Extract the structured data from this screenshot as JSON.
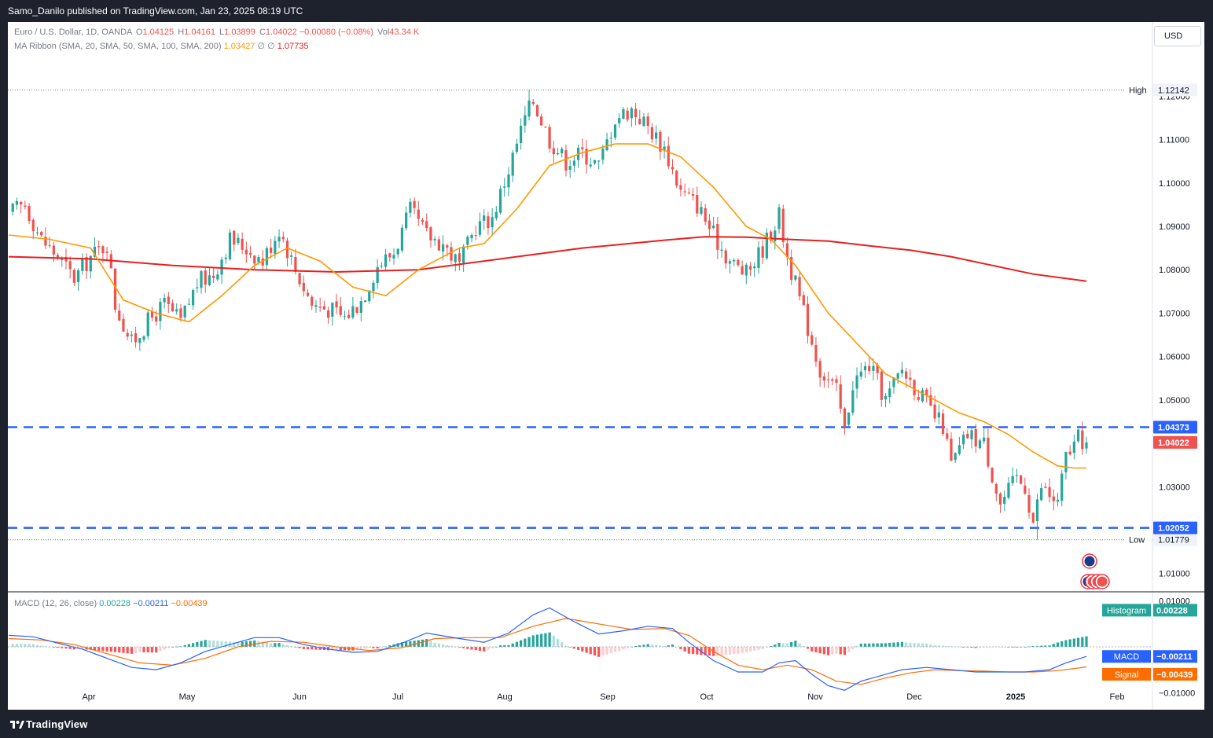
{
  "header": {
    "publisher": "Samo_Danilo published on TradingView.com, Jan 23, 2025 08:19 UTC"
  },
  "legend": {
    "symbol": "Euro / U.S. Dollar, 1D, OANDA",
    "open_label": "O",
    "open": "1.04125",
    "high_label": "H",
    "high": "1.04161",
    "low_label": "L",
    "low": "1.03899",
    "close_label": "C",
    "close": "1.04022",
    "change": "−0.00080 (−0.08%)",
    "vol_label": "Vol",
    "vol": "43.34 K",
    "ma_label": "MA Ribbon (SMA, 20, SMA, 50, SMA, 100, SMA, 200)",
    "ma_value1": "1.03427",
    "ma_value2": "∅",
    "ma_value3": "∅",
    "ma_value4": "1.07735",
    "macd_label": "MACD (12, 26, close)",
    "macd_hist": "0.00228",
    "macd_line": "−0.00211",
    "macd_signal": "−0.00439"
  },
  "currency_button": "USD",
  "price_badges": {
    "high_label": "High",
    "high_value": "1.12142",
    "low_label": "Low",
    "low_value": "1.01779",
    "level_upper": "1.04373",
    "level_lower": "1.02052",
    "last_price": "1.04022",
    "hist_label": "Histogram",
    "hist_value": "0.00228",
    "macd_label": "MACD",
    "macd_value": "−0.00211",
    "signal_label": "Signal",
    "signal_value": "−0.00439"
  },
  "footer": {
    "brand": "TradingView"
  },
  "colors": {
    "up": "#26a69a",
    "down": "#ef5350",
    "sma20": "#ff9800",
    "sma200": "#e91e1e",
    "level": "#2962ff",
    "macd": "#2962ff",
    "signal": "#ff6d00",
    "text": "#131722",
    "muted": "#787b86"
  },
  "chart_data": {
    "type": "candlestick",
    "symbol": "EURUSD",
    "timeframe": "1D",
    "y_axis_ticks": [
      "1.12000",
      "1.11000",
      "1.10000",
      "1.09000",
      "1.08000",
      "1.07000",
      "1.06000",
      "1.05000",
      "1.03000",
      "1.01000"
    ],
    "ylim": [
      1.0085,
      1.1235
    ],
    "x_axis_labels": [
      "Apr",
      "May",
      "Jun",
      "Jul",
      "Aug",
      "Sep",
      "Oct",
      "Nov",
      "Dec",
      "2025",
      "Feb"
    ],
    "price_path": [
      [
        0,
        1.093
      ],
      [
        4,
        1.095
      ],
      [
        8,
        1.087
      ],
      [
        12,
        1.083
      ],
      [
        16,
        1.078
      ],
      [
        20,
        1.083
      ],
      [
        24,
        1.086
      ],
      [
        26,
        1.072
      ],
      [
        30,
        1.063
      ],
      [
        34,
        1.068
      ],
      [
        38,
        1.072
      ],
      [
        42,
        1.068
      ],
      [
        46,
        1.077
      ],
      [
        50,
        1.079
      ],
      [
        54,
        1.087
      ],
      [
        58,
        1.085
      ],
      [
        62,
        1.082
      ],
      [
        66,
        1.0895
      ],
      [
        70,
        1.08
      ],
      [
        74,
        1.072
      ],
      [
        78,
        1.071
      ],
      [
        82,
        1.069
      ],
      [
        86,
        1.073
      ],
      [
        90,
        1.081
      ],
      [
        94,
        1.084
      ],
      [
        98,
        1.0935
      ],
      [
        102,
        1.088
      ],
      [
        106,
        1.086
      ],
      [
        110,
        1.081
      ],
      [
        114,
        1.09
      ],
      [
        118,
        1.092
      ],
      [
        122,
        1.103
      ],
      [
        126,
        1.115
      ],
      [
        128,
        1.119
      ],
      [
        132,
        1.11
      ],
      [
        136,
        1.105
      ],
      [
        140,
        1.107
      ],
      [
        144,
        1.104
      ],
      [
        148,
        1.115
      ],
      [
        152,
        1.117
      ],
      [
        156,
        1.113
      ],
      [
        160,
        1.108
      ],
      [
        164,
        1.098
      ],
      [
        168,
        1.095
      ],
      [
        172,
        1.088
      ],
      [
        176,
        1.082
      ],
      [
        180,
        1.079
      ],
      [
        184,
        1.085
      ],
      [
        188,
        1.0925
      ],
      [
        190,
        1.083
      ],
      [
        194,
        1.07
      ],
      [
        198,
        1.057
      ],
      [
        202,
        1.052
      ],
      [
        204,
        1.043
      ],
      [
        206,
        1.054
      ],
      [
        210,
        1.058
      ],
      [
        214,
        1.05
      ],
      [
        218,
        1.057
      ],
      [
        222,
        1.052
      ],
      [
        226,
        1.046
      ],
      [
        228,
        1.044
      ],
      [
        230,
        1.035
      ],
      [
        234,
        1.042
      ],
      [
        238,
        1.04
      ],
      [
        242,
        1.026
      ],
      [
        246,
        1.032
      ],
      [
        248,
        1.03
      ],
      [
        250,
        1.022
      ],
      [
        252,
        1.03
      ],
      [
        256,
        1.026
      ],
      [
        258,
        1.037
      ],
      [
        261,
        1.041
      ],
      [
        263,
        1.0402
      ]
    ],
    "sma20_path": [
      [
        0,
        1.088
      ],
      [
        10,
        1.087
      ],
      [
        20,
        1.085
      ],
      [
        28,
        1.073
      ],
      [
        36,
        1.07
      ],
      [
        44,
        1.068
      ],
      [
        52,
        1.074
      ],
      [
        60,
        1.081
      ],
      [
        68,
        1.085
      ],
      [
        76,
        1.082
      ],
      [
        84,
        1.076
      ],
      [
        92,
        1.074
      ],
      [
        100,
        1.08
      ],
      [
        110,
        1.085
      ],
      [
        116,
        1.086
      ],
      [
        124,
        1.094
      ],
      [
        132,
        1.104
      ],
      [
        140,
        1.107
      ],
      [
        148,
        1.109
      ],
      [
        156,
        1.109
      ],
      [
        164,
        1.106
      ],
      [
        172,
        1.099
      ],
      [
        180,
        1.09
      ],
      [
        186,
        1.087
      ],
      [
        192,
        1.081
      ],
      [
        200,
        1.07
      ],
      [
        208,
        1.062
      ],
      [
        214,
        1.056
      ],
      [
        220,
        1.053
      ],
      [
        226,
        1.05
      ],
      [
        232,
        1.047
      ],
      [
        238,
        1.045
      ],
      [
        244,
        1.042
      ],
      [
        250,
        1.038
      ],
      [
        256,
        1.0348
      ],
      [
        260,
        1.0343
      ],
      [
        263,
        1.0343
      ]
    ],
    "sma200_path": [
      [
        0,
        1.083
      ],
      [
        20,
        1.0825
      ],
      [
        40,
        1.081
      ],
      [
        60,
        1.08
      ],
      [
        80,
        1.0795
      ],
      [
        100,
        1.08
      ],
      [
        120,
        1.0825
      ],
      [
        140,
        1.085
      ],
      [
        160,
        1.0868
      ],
      [
        170,
        1.0876
      ],
      [
        180,
        1.0875
      ],
      [
        190,
        1.087
      ],
      [
        200,
        1.0866
      ],
      [
        210,
        1.0855
      ],
      [
        220,
        1.0845
      ],
      [
        230,
        1.083
      ],
      [
        240,
        1.081
      ],
      [
        250,
        1.079
      ],
      [
        263,
        1.07735
      ]
    ],
    "levels": [
      1.04373,
      1.02052
    ],
    "high": 1.12142,
    "low": 1.01779,
    "last": 1.04022,
    "macd": {
      "ylim": [
        -0.0115,
        0.0115
      ],
      "y_axis_ticks": [
        "0.01000",
        "−0.01000"
      ],
      "macd_path": [
        [
          0,
          0.0025
        ],
        [
          6,
          0.0022
        ],
        [
          12,
          0.0008
        ],
        [
          18,
          -0.0005
        ],
        [
          24,
          -0.0025
        ],
        [
          30,
          -0.0045
        ],
        [
          36,
          -0.005
        ],
        [
          42,
          -0.0035
        ],
        [
          48,
          -0.001
        ],
        [
          54,
          0.0005
        ],
        [
          60,
          0.002
        ],
        [
          66,
          0.002
        ],
        [
          72,
          0.0005
        ],
        [
          78,
          -0.0005
        ],
        [
          84,
          -0.0012
        ],
        [
          90,
          -0.001
        ],
        [
          96,
          0.0008
        ],
        [
          102,
          0.003
        ],
        [
          110,
          0.0018
        ],
        [
          116,
          0.001
        ],
        [
          122,
          0.003
        ],
        [
          128,
          0.007
        ],
        [
          132,
          0.0085
        ],
        [
          138,
          0.0055
        ],
        [
          144,
          0.0028
        ],
        [
          150,
          0.0035
        ],
        [
          156,
          0.0045
        ],
        [
          162,
          0.004
        ],
        [
          166,
          0.001
        ],
        [
          172,
          -0.003
        ],
        [
          178,
          -0.0055
        ],
        [
          184,
          -0.0055
        ],
        [
          188,
          -0.0035
        ],
        [
          192,
          -0.003
        ],
        [
          196,
          -0.006
        ],
        [
          200,
          -0.0085
        ],
        [
          204,
          -0.0095
        ],
        [
          208,
          -0.0075
        ],
        [
          212,
          -0.0065
        ],
        [
          218,
          -0.005
        ],
        [
          224,
          -0.0045
        ],
        [
          230,
          -0.005
        ],
        [
          236,
          -0.0055
        ],
        [
          242,
          -0.0055
        ],
        [
          248,
          -0.0055
        ],
        [
          254,
          -0.005
        ],
        [
          258,
          -0.0035
        ],
        [
          263,
          -0.0021
        ]
      ],
      "signal_path": [
        [
          0,
          0.0018
        ],
        [
          8,
          0.0015
        ],
        [
          16,
          0.0005
        ],
        [
          24,
          -0.0015
        ],
        [
          32,
          -0.0035
        ],
        [
          40,
          -0.004
        ],
        [
          48,
          -0.0025
        ],
        [
          56,
          0.0
        ],
        [
          64,
          0.0012
        ],
        [
          72,
          0.001
        ],
        [
          80,
          0.0
        ],
        [
          88,
          -0.0008
        ],
        [
          96,
          -0.0002
        ],
        [
          104,
          0.0018
        ],
        [
          112,
          0.002
        ],
        [
          120,
          0.002
        ],
        [
          128,
          0.0045
        ],
        [
          136,
          0.0062
        ],
        [
          144,
          0.005
        ],
        [
          152,
          0.0038
        ],
        [
          160,
          0.004
        ],
        [
          166,
          0.0025
        ],
        [
          172,
          -0.001
        ],
        [
          178,
          -0.004
        ],
        [
          184,
          -0.005
        ],
        [
          190,
          -0.004
        ],
        [
          196,
          -0.005
        ],
        [
          202,
          -0.0075
        ],
        [
          208,
          -0.0082
        ],
        [
          214,
          -0.0068
        ],
        [
          220,
          -0.0057
        ],
        [
          226,
          -0.005
        ],
        [
          232,
          -0.0052
        ],
        [
          238,
          -0.0053
        ],
        [
          244,
          -0.0055
        ],
        [
          250,
          -0.0055
        ],
        [
          256,
          -0.0052
        ],
        [
          263,
          -0.0044
        ]
      ]
    }
  }
}
